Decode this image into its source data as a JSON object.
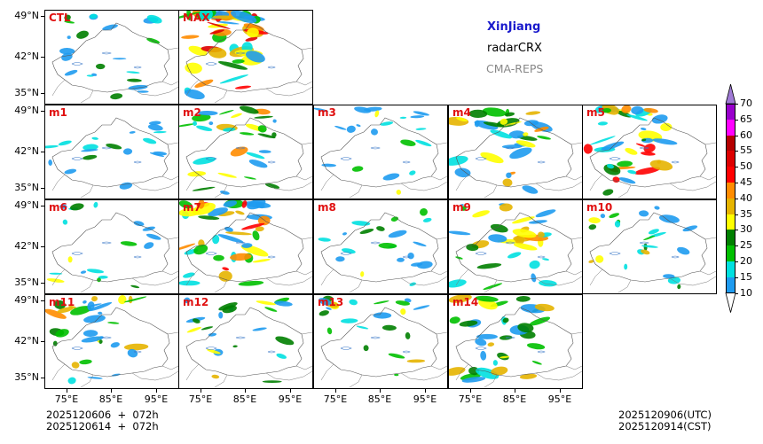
{
  "title": {
    "region": "XinJiang",
    "variable": "radarCRX",
    "model": "CMA-REPS"
  },
  "panels": [
    {
      "label": "CTL",
      "intensity": 0.35
    },
    {
      "label": "MAX",
      "intensity": 1.0
    },
    {
      "label": "m1",
      "intensity": 0.25
    },
    {
      "label": "m2",
      "intensity": 0.55
    },
    {
      "label": "m3",
      "intensity": 0.3
    },
    {
      "label": "m4",
      "intensity": 0.6
    },
    {
      "label": "m5",
      "intensity": 0.8
    },
    {
      "label": "m6",
      "intensity": 0.25
    },
    {
      "label": "m7",
      "intensity": 0.85
    },
    {
      "label": "m8",
      "intensity": 0.3
    },
    {
      "label": "m9",
      "intensity": 0.6
    },
    {
      "label": "m10",
      "intensity": 0.4
    },
    {
      "label": "m11",
      "intensity": 0.6
    },
    {
      "label": "m12",
      "intensity": 0.35
    },
    {
      "label": "m13",
      "intensity": 0.35
    },
    {
      "label": "m14",
      "intensity": 0.65
    }
  ],
  "axes": {
    "lat_labels": [
      "49°N",
      "42°N",
      "35°N"
    ],
    "lon_labels": [
      "75°E",
      "85°E",
      "95°E"
    ]
  },
  "footer": {
    "init_line1": "2025120606  +  072h",
    "init_line2": "2025120614  +  072h",
    "valid_utc": "2025120906(UTC)",
    "valid_cst": "2025120914(CST)"
  },
  "colorbar": {
    "levels": [
      "10",
      "15",
      "20",
      "25",
      "30",
      "35",
      "40",
      "45",
      "50",
      "55",
      "60",
      "65",
      "70"
    ],
    "colors": [
      "#1e9bf0",
      "#00e0e0",
      "#00c000",
      "#008000",
      "#ffff00",
      "#e6b400",
      "#ff8c00",
      "#ff0000",
      "#dd0000",
      "#b40000",
      "#ff00ff",
      "#9900cc",
      "#a080d0"
    ],
    "under_color": "#ffffff",
    "over_color": "#a07ad6"
  }
}
